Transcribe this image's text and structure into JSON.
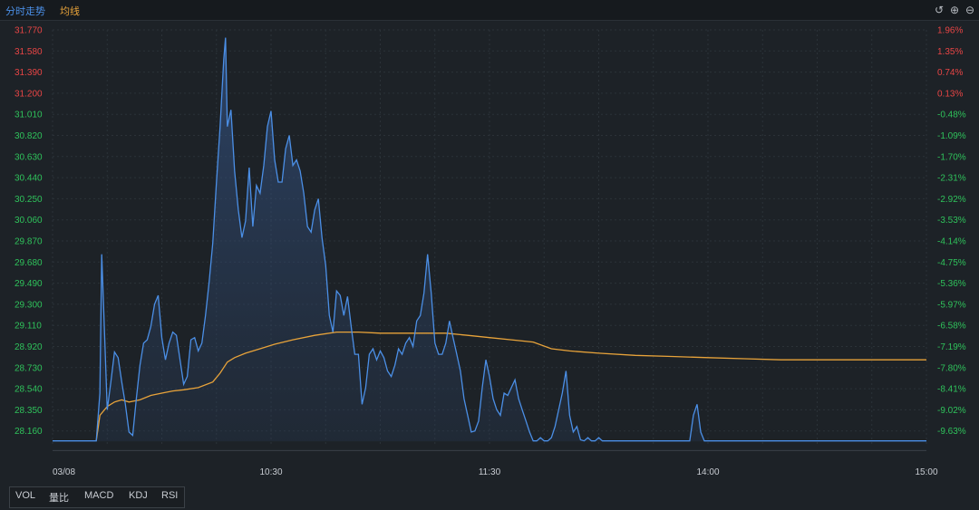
{
  "header": {
    "tab_trend": "分时走势",
    "tab_avg": "均线",
    "colors": {
      "trend": "#4b8fe6",
      "avg": "#e8a33a"
    }
  },
  "controls": [
    {
      "name": "reset-icon",
      "glyph": "↺"
    },
    {
      "name": "zoom-in-icon",
      "glyph": "⊕"
    },
    {
      "name": "zoom-out-icon",
      "glyph": "⊖"
    }
  ],
  "indicators": [
    "VOL",
    "量比",
    "MACD",
    "KDJ",
    "RSI"
  ],
  "chart_data": {
    "type": "line",
    "title": "",
    "xlabel": "",
    "ylabel": "",
    "ylim": [
      28.065,
      31.77
    ],
    "grid": true,
    "y_ticks_left": [
      "31.770",
      "31.580",
      "31.390",
      "31.200",
      "31.010",
      "30.820",
      "30.630",
      "30.440",
      "30.250",
      "30.060",
      "29.870",
      "29.680",
      "29.490",
      "29.300",
      "29.110",
      "28.920",
      "28.730",
      "28.540",
      "28.350",
      "28.160"
    ],
    "y_ticks_right": [
      "1.96%",
      "1.35%",
      "0.74%",
      "0.13%",
      "-0.48%",
      "-1.09%",
      "-1.70%",
      "-2.31%",
      "-2.92%",
      "-3.53%",
      "-4.14%",
      "-4.75%",
      "-5.36%",
      "-5.97%",
      "-6.58%",
      "-7.19%",
      "-7.80%",
      "-8.41%",
      "-9.02%",
      "-9.63%"
    ],
    "x_ticks": [
      {
        "label": "03/08",
        "t": 0
      },
      {
        "label": "10:30",
        "t": 60
      },
      {
        "label": "11:30",
        "t": 120
      },
      {
        "label": "14:00",
        "t": 180
      },
      {
        "label": "15:00",
        "t": 240
      }
    ],
    "colors": {
      "up": "#e84545",
      "down": "#2fc25b",
      "price": "#4b8fe6",
      "avg": "#e8a33a",
      "grid": "#2b3238"
    },
    "series": [
      {
        "key": "price",
        "points": [
          [
            0,
            28.07
          ],
          [
            12,
            28.07
          ],
          [
            13,
            28.5
          ],
          [
            13.5,
            29.75
          ],
          [
            14,
            29.3
          ],
          [
            15,
            28.35
          ],
          [
            16,
            28.6
          ],
          [
            17,
            28.87
          ],
          [
            18,
            28.82
          ],
          [
            19,
            28.6
          ],
          [
            20,
            28.4
          ],
          [
            21,
            28.15
          ],
          [
            22,
            28.12
          ],
          [
            23,
            28.45
          ],
          [
            24,
            28.75
          ],
          [
            25,
            28.95
          ],
          [
            26,
            28.98
          ],
          [
            27,
            29.1
          ],
          [
            28,
            29.3
          ],
          [
            29,
            29.38
          ],
          [
            30,
            29.0
          ],
          [
            31,
            28.8
          ],
          [
            32,
            28.95
          ],
          [
            33,
            29.05
          ],
          [
            34,
            29.02
          ],
          [
            35,
            28.8
          ],
          [
            36,
            28.58
          ],
          [
            37,
            28.65
          ],
          [
            38,
            28.98
          ],
          [
            39,
            29.0
          ],
          [
            40,
            28.88
          ],
          [
            41,
            28.95
          ],
          [
            42,
            29.2
          ],
          [
            43,
            29.5
          ],
          [
            44,
            29.85
          ],
          [
            45,
            30.4
          ],
          [
            46,
            30.9
          ],
          [
            47,
            31.5
          ],
          [
            47.5,
            31.7
          ],
          [
            48,
            30.9
          ],
          [
            49,
            31.05
          ],
          [
            50,
            30.5
          ],
          [
            51,
            30.15
          ],
          [
            52,
            29.9
          ],
          [
            53,
            30.05
          ],
          [
            54,
            30.53
          ],
          [
            55,
            30.0
          ],
          [
            56,
            30.37
          ],
          [
            57,
            30.3
          ],
          [
            58,
            30.55
          ],
          [
            59,
            30.9
          ],
          [
            60,
            31.04
          ],
          [
            61,
            30.6
          ],
          [
            62,
            30.4
          ],
          [
            63,
            30.4
          ],
          [
            64,
            30.7
          ],
          [
            65,
            30.82
          ],
          [
            66,
            30.55
          ],
          [
            67,
            30.6
          ],
          [
            68,
            30.5
          ],
          [
            69,
            30.3
          ],
          [
            70,
            30.0
          ],
          [
            71,
            29.95
          ],
          [
            72,
            30.15
          ],
          [
            73,
            30.25
          ],
          [
            74,
            29.9
          ],
          [
            75,
            29.65
          ],
          [
            76,
            29.2
          ],
          [
            77,
            29.05
          ],
          [
            78,
            29.42
          ],
          [
            79,
            29.38
          ],
          [
            80,
            29.2
          ],
          [
            81,
            29.37
          ],
          [
            82,
            29.1
          ],
          [
            83,
            28.85
          ],
          [
            84,
            28.85
          ],
          [
            85,
            28.4
          ],
          [
            86,
            28.55
          ],
          [
            87,
            28.85
          ],
          [
            88,
            28.9
          ],
          [
            89,
            28.8
          ],
          [
            90,
            28.88
          ],
          [
            91,
            28.82
          ],
          [
            92,
            28.7
          ],
          [
            93,
            28.65
          ],
          [
            94,
            28.75
          ],
          [
            95,
            28.9
          ],
          [
            96,
            28.85
          ],
          [
            97,
            28.95
          ],
          [
            98,
            29.0
          ],
          [
            99,
            28.92
          ],
          [
            100,
            29.15
          ],
          [
            101,
            29.2
          ],
          [
            102,
            29.4
          ],
          [
            103,
            29.75
          ],
          [
            104,
            29.4
          ],
          [
            105,
            28.95
          ],
          [
            106,
            28.85
          ],
          [
            107,
            28.85
          ],
          [
            108,
            28.95
          ],
          [
            109,
            29.15
          ],
          [
            110,
            29.0
          ],
          [
            111,
            28.85
          ],
          [
            112,
            28.7
          ],
          [
            113,
            28.45
          ],
          [
            114,
            28.3
          ],
          [
            115,
            28.15
          ],
          [
            116,
            28.16
          ],
          [
            117,
            28.25
          ],
          [
            118,
            28.55
          ],
          [
            119,
            28.8
          ],
          [
            120,
            28.65
          ],
          [
            121,
            28.45
          ],
          [
            122,
            28.35
          ],
          [
            123,
            28.3
          ],
          [
            124,
            28.5
          ],
          [
            125,
            28.48
          ],
          [
            126,
            28.55
          ],
          [
            127,
            28.62
          ],
          [
            128,
            28.45
          ],
          [
            129,
            28.35
          ],
          [
            130,
            28.25
          ],
          [
            131,
            28.15
          ],
          [
            132,
            28.07
          ],
          [
            133,
            28.07
          ],
          [
            134,
            28.1
          ],
          [
            135,
            28.07
          ],
          [
            136,
            28.07
          ],
          [
            137,
            28.1
          ],
          [
            138,
            28.2
          ],
          [
            139,
            28.35
          ],
          [
            140,
            28.5
          ],
          [
            141,
            28.7
          ],
          [
            142,
            28.3
          ],
          [
            143,
            28.15
          ],
          [
            144,
            28.2
          ],
          [
            145,
            28.08
          ],
          [
            146,
            28.07
          ],
          [
            147,
            28.1
          ],
          [
            148,
            28.07
          ],
          [
            149,
            28.07
          ],
          [
            150,
            28.1
          ],
          [
            151,
            28.07
          ],
          [
            152,
            28.07
          ],
          [
            160,
            28.07
          ],
          [
            161,
            28.07
          ],
          [
            175,
            28.07
          ],
          [
            176,
            28.3
          ],
          [
            177,
            28.4
          ],
          [
            178,
            28.15
          ],
          [
            179,
            28.07
          ],
          [
            240,
            28.07
          ]
        ]
      },
      {
        "key": "avg",
        "points": [
          [
            12,
            28.07
          ],
          [
            13,
            28.3
          ],
          [
            15,
            28.38
          ],
          [
            17,
            28.42
          ],
          [
            19,
            28.44
          ],
          [
            21,
            28.42
          ],
          [
            24,
            28.44
          ],
          [
            27,
            28.48
          ],
          [
            30,
            28.5
          ],
          [
            33,
            28.52
          ],
          [
            36,
            28.53
          ],
          [
            40,
            28.55
          ],
          [
            44,
            28.6
          ],
          [
            46,
            28.68
          ],
          [
            48,
            28.78
          ],
          [
            50,
            28.82
          ],
          [
            53,
            28.86
          ],
          [
            57,
            28.9
          ],
          [
            61,
            28.94
          ],
          [
            66,
            28.98
          ],
          [
            72,
            29.02
          ],
          [
            78,
            29.05
          ],
          [
            84,
            29.05
          ],
          [
            90,
            29.04
          ],
          [
            96,
            29.04
          ],
          [
            102,
            29.04
          ],
          [
            108,
            29.04
          ],
          [
            114,
            29.02
          ],
          [
            120,
            29.0
          ],
          [
            126,
            28.98
          ],
          [
            132,
            28.96
          ],
          [
            137,
            28.9
          ],
          [
            142,
            28.88
          ],
          [
            150,
            28.86
          ],
          [
            160,
            28.84
          ],
          [
            170,
            28.83
          ],
          [
            180,
            28.82
          ],
          [
            190,
            28.81
          ],
          [
            200,
            28.8
          ],
          [
            220,
            28.8
          ],
          [
            240,
            28.8
          ]
        ]
      }
    ]
  }
}
